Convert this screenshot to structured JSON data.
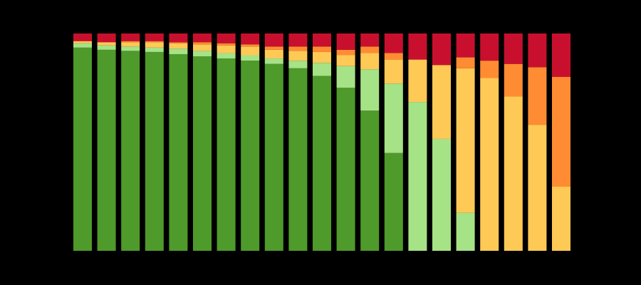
{
  "chart_data": {
    "type": "bar",
    "stacked": true,
    "normalized": true,
    "grid": false,
    "legend": "none",
    "ylim": [
      0,
      100
    ],
    "categories": [
      "",
      "",
      "",
      "",
      "",
      "",
      "",
      "",
      "",
      "",
      "",
      "",
      "",
      "",
      "",
      "",
      "",
      "",
      "",
      "",
      ""
    ],
    "colors": [
      "#4e9a2a",
      "#a6e286",
      "#ffc955",
      "#ff8c33",
      "#c8102e"
    ],
    "series": [
      {
        "values": [
          93.5,
          92.5,
          92,
          91.5,
          90.5,
          89.5,
          88.5,
          87.5,
          86,
          84,
          80.5,
          75,
          64.5,
          45,
          0,
          0,
          0,
          0,
          0,
          0,
          0
        ]
      },
      {
        "values": [
          2,
          2,
          2,
          2,
          2.5,
          2.5,
          2.5,
          2.5,
          2.5,
          3.5,
          6,
          10,
          19,
          32,
          68.5,
          51.5,
          17.5,
          0,
          0,
          0,
          0
        ]
      },
      {
        "values": [
          1,
          1.5,
          2,
          2.5,
          2.5,
          3,
          3.5,
          4,
          4,
          4.5,
          5,
          5,
          7.5,
          11,
          19.5,
          34,
          66.5,
          79.5,
          71,
          58,
          29.5
        ]
      },
      {
        "values": [
          0,
          0,
          0.5,
          0.5,
          0.5,
          1,
          1,
          1,
          1.5,
          2,
          2.5,
          2.5,
          3,
          3,
          0,
          0,
          5,
          8,
          15,
          26.5,
          50.5
        ]
      },
      {
        "values": [
          3.5,
          4,
          3.5,
          3.5,
          4,
          4,
          4.5,
          5,
          6,
          6,
          6,
          7.5,
          6,
          9,
          12,
          14.5,
          11,
          12.5,
          14,
          15.5,
          20
        ]
      }
    ]
  }
}
